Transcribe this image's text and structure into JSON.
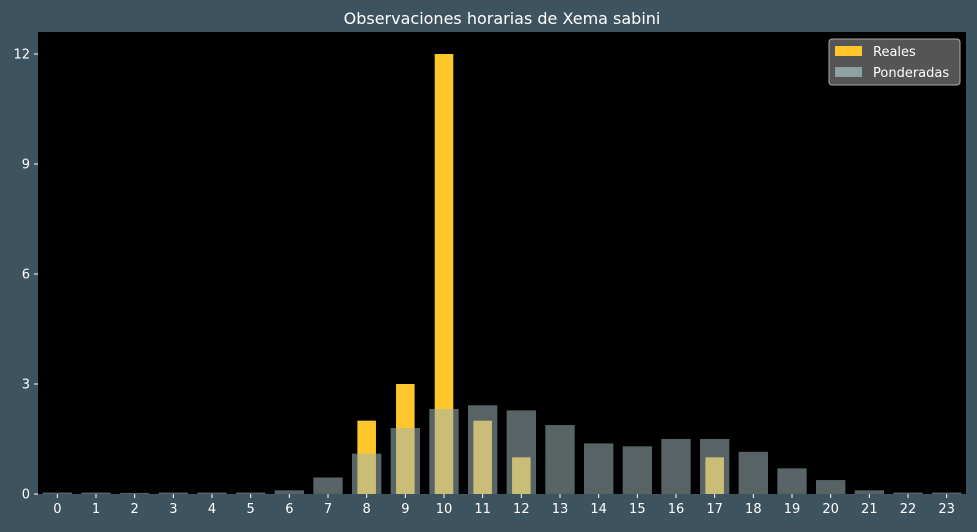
{
  "chart_data": {
    "type": "bar",
    "title": "Observaciones horarias de Xema sabini",
    "xlabel": "",
    "ylabel": "",
    "categories": [
      "0",
      "1",
      "2",
      "3",
      "4",
      "5",
      "6",
      "7",
      "8",
      "9",
      "10",
      "11",
      "12",
      "13",
      "14",
      "15",
      "16",
      "17",
      "18",
      "19",
      "20",
      "21",
      "22",
      "23"
    ],
    "ylim": [
      0,
      12.6
    ],
    "yticks": [
      0,
      3,
      6,
      9,
      12
    ],
    "grid": false,
    "legend_position": "top-right",
    "series": [
      {
        "name": "Reales",
        "color": "#ffc72c",
        "values": [
          0,
          0,
          0,
          0,
          0,
          0,
          0,
          0,
          2,
          3,
          12,
          2,
          1,
          0,
          0,
          0,
          0,
          1,
          0,
          0,
          0,
          0,
          0,
          0
        ]
      },
      {
        "name": "Ponderadas",
        "color": "#9fb4b8",
        "values": [
          0.04,
          0.04,
          0.03,
          0.04,
          0.04,
          0.04,
          0.1,
          0.45,
          1.1,
          1.8,
          2.32,
          2.42,
          2.28,
          1.88,
          1.38,
          1.3,
          1.5,
          1.5,
          1.15,
          0.7,
          0.38,
          0.1,
          0.04,
          0.04
        ]
      }
    ]
  }
}
